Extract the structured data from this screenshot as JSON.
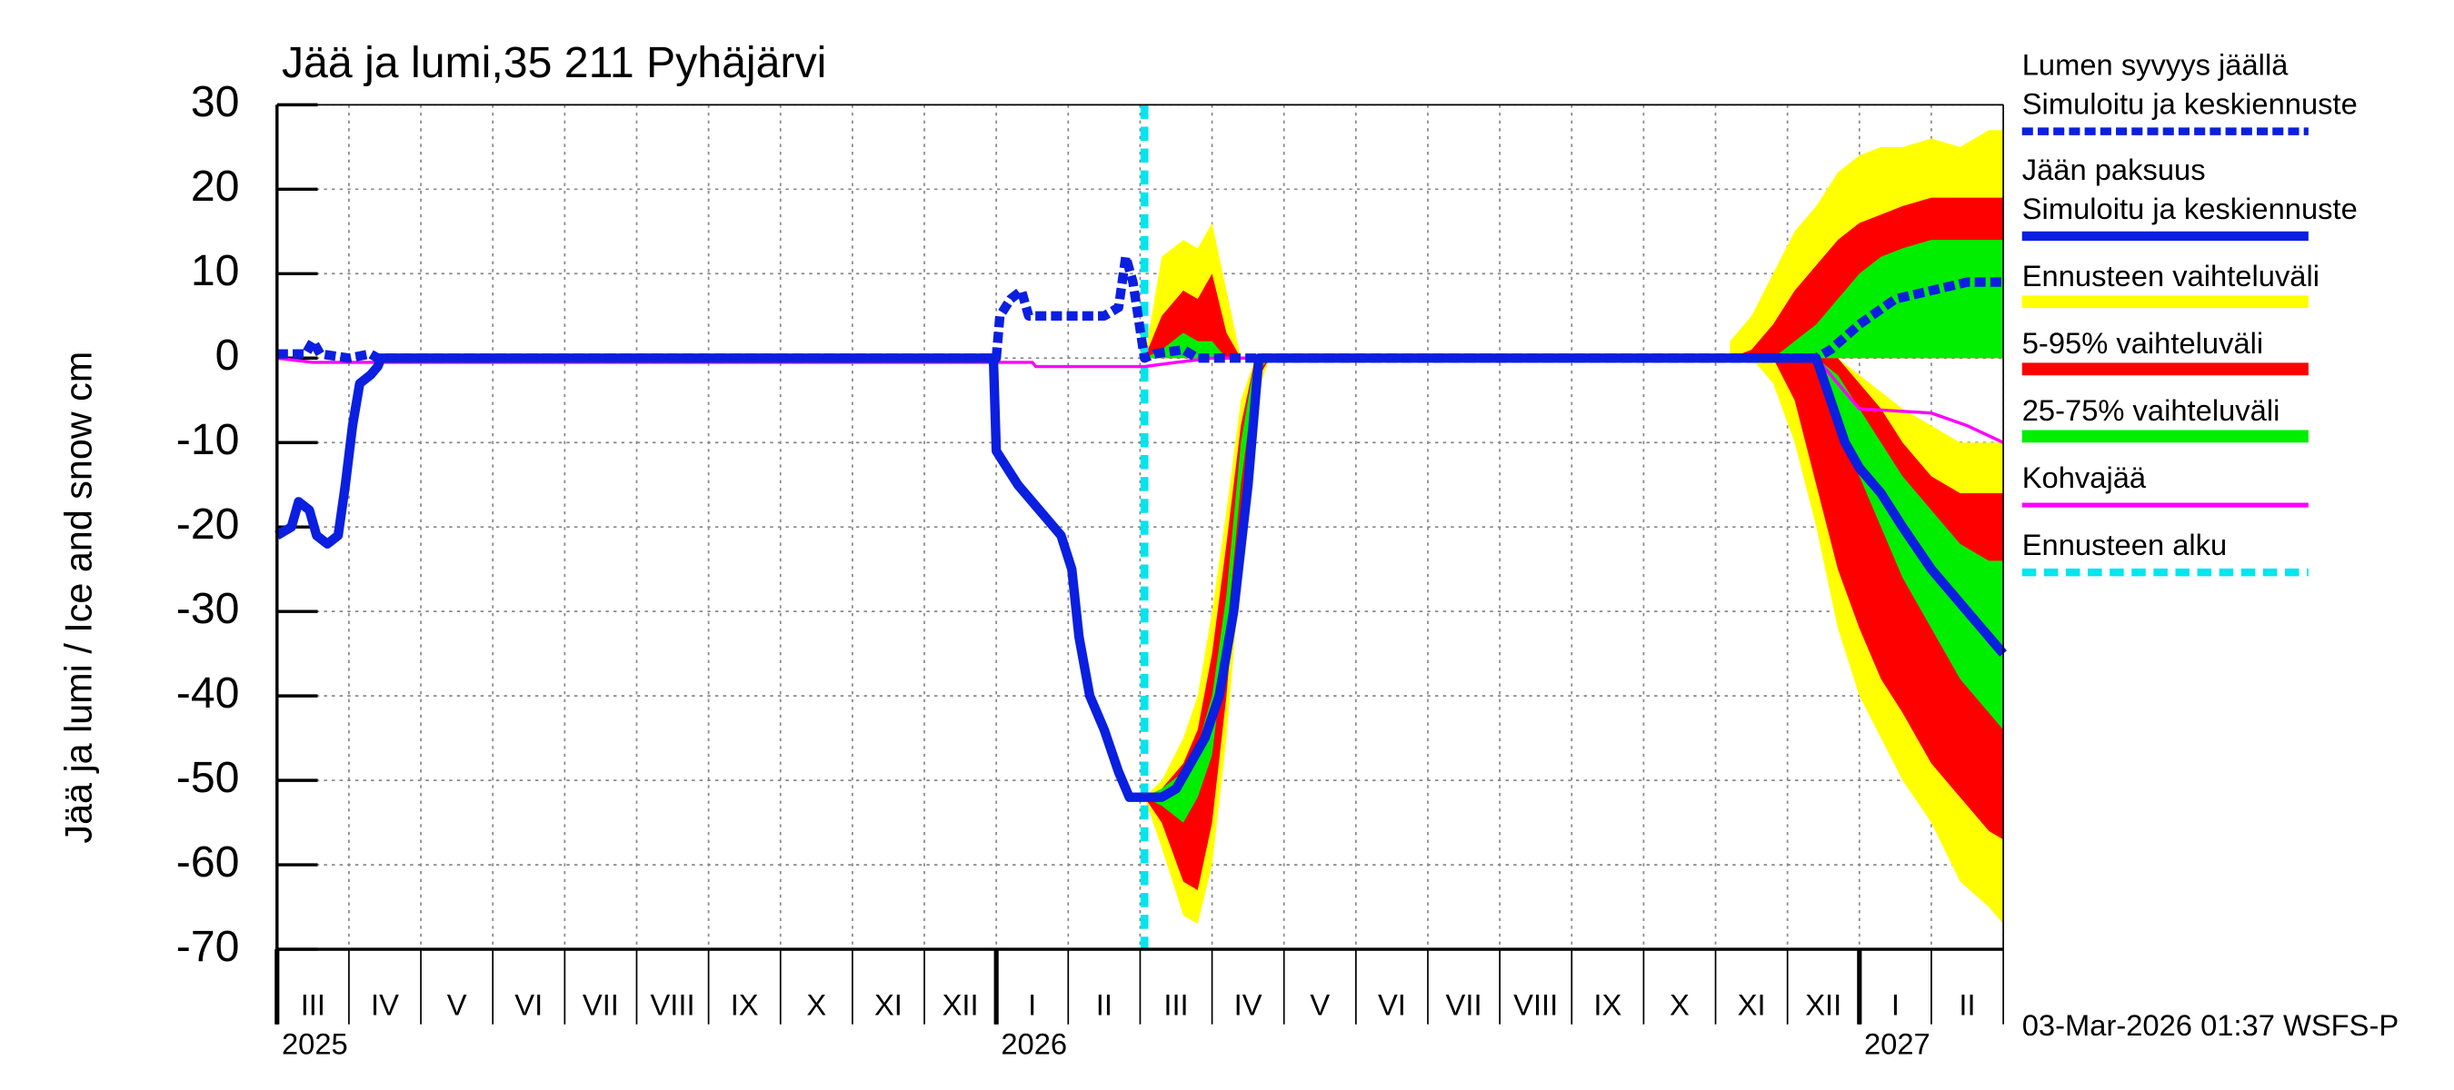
{
  "chart_data": {
    "type": "line",
    "title": "Jää ja lumi,35 211 Pyhäjärvi",
    "y_label": "Jää ja lumi / Ice and snow    cm",
    "footer": "03-Mar-2026 01:37 WSFS-P",
    "ylim": [
      -70,
      30
    ],
    "yticks": [
      -70,
      -60,
      -50,
      -40,
      -30,
      -20,
      -10,
      0,
      10,
      20,
      30
    ],
    "xlim": [
      0,
      24
    ],
    "xticks": [
      0,
      1,
      2,
      3,
      4,
      5,
      6,
      7,
      8,
      9,
      10,
      11,
      12,
      13,
      14,
      15,
      16,
      17,
      18,
      19,
      20,
      21,
      22,
      23,
      24
    ],
    "categories": [
      "III",
      "IV",
      "V",
      "VI",
      "VII",
      "VIII",
      "IX",
      "X",
      "XI",
      "XII",
      "I",
      "II",
      "III",
      "IV",
      "V",
      "VI",
      "VII",
      "VIII",
      "IX",
      "X",
      "XI",
      "XII",
      "I",
      "II"
    ],
    "year_ticks": [
      {
        "value": 0,
        "label": "2025"
      },
      {
        "value": 10,
        "label": "2026"
      },
      {
        "value": 22,
        "label": "2027"
      }
    ],
    "grid": true,
    "band_x": [
      12.06,
      12.3,
      12.6,
      12.8,
      13.0,
      13.2,
      13.4,
      13.6,
      13.8,
      14.0,
      null,
      20.2,
      20.5,
      20.8,
      21.1,
      21.4,
      21.7,
      22.0,
      22.3,
      22.6,
      23.0,
      23.4,
      23.8,
      24.0
    ],
    "bands": [
      {
        "name": "Ennusteen vaihteluväli",
        "color": "#ffff00",
        "ice_lower": [
          -52,
          -58,
          -66,
          -67,
          -60,
          -45,
          -25,
          -5,
          0,
          0,
          null,
          0,
          0,
          -3,
          -10,
          -20,
          -32,
          -40,
          -45,
          -50,
          -55,
          -62,
          -65,
          -67
        ],
        "ice_upper": [
          -52,
          -50,
          -45,
          -40,
          -30,
          -18,
          -5,
          0,
          0,
          0,
          null,
          0,
          0,
          0,
          0,
          0,
          0,
          -2,
          -4,
          -6,
          -8,
          -10,
          -10,
          -10
        ],
        "snow_upper": [
          0,
          12,
          14,
          13,
          16,
          8,
          0,
          0,
          0,
          0,
          null,
          2,
          5,
          10,
          15,
          18,
          22,
          24,
          25,
          25,
          26,
          25,
          27,
          27
        ]
      },
      {
        "name": "5-95% vaihteluväli",
        "color": "#ff0000",
        "ice_lower": [
          -52,
          -55,
          -62,
          -63,
          -55,
          -40,
          -20,
          -3,
          0,
          0,
          null,
          0,
          0,
          0,
          -5,
          -15,
          -25,
          -32,
          -38,
          -42,
          -48,
          -52,
          -56,
          -57
        ],
        "ice_upper": [
          -52,
          -51,
          -48,
          -44,
          -35,
          -22,
          -8,
          0,
          0,
          0,
          null,
          0,
          0,
          0,
          0,
          0,
          0,
          -3,
          -6,
          -10,
          -14,
          -16,
          -16,
          -16
        ],
        "snow_upper": [
          0,
          5,
          8,
          7,
          10,
          3,
          0,
          0,
          0,
          0,
          null,
          0,
          1,
          4,
          8,
          11,
          14,
          16,
          17,
          18,
          19,
          19,
          19,
          19
        ]
      },
      {
        "name": "25-75% vaihteluväli",
        "color": "#00ee00",
        "ice_lower": [
          -52,
          -53,
          -55,
          -52,
          -47,
          -33,
          -15,
          -2,
          0,
          0,
          null,
          0,
          0,
          0,
          0,
          0,
          -8,
          -14,
          -20,
          -26,
          -32,
          -38,
          -42,
          -44
        ],
        "ice_upper": [
          -52,
          -51,
          -49,
          -46,
          -40,
          -28,
          -10,
          0,
          0,
          0,
          null,
          0,
          0,
          0,
          0,
          0,
          -2,
          -6,
          -10,
          -14,
          -18,
          -22,
          -24,
          -24
        ],
        "snow_upper": [
          0,
          1,
          3,
          2,
          2,
          0,
          0,
          0,
          0,
          0,
          null,
          0,
          0,
          0,
          2,
          4,
          7,
          10,
          12,
          13,
          14,
          14,
          14,
          14
        ]
      }
    ],
    "series": [
      {
        "name": "Lumen syvyys jäällä",
        "description": "Simuloitu ja keskiennuste",
        "color": "#0a1fe0",
        "dashed": true,
        "x": [
          0,
          0.4,
          0.5,
          0.6,
          1.0,
          1.3,
          1.4,
          10.0,
          10.05,
          10.2,
          10.35,
          10.45,
          11.5,
          11.7,
          11.8,
          11.9,
          12.06,
          12.2,
          12.6,
          12.8,
          21.4,
          21.6,
          22.0,
          22.5,
          23.0,
          23.5,
          24.0
        ],
        "values": [
          0.5,
          0.5,
          2,
          0.5,
          0,
          0.5,
          0,
          0,
          5,
          7,
          8,
          5,
          5,
          6,
          12,
          9,
          0,
          0.5,
          1,
          0,
          0,
          1,
          4,
          7,
          8,
          9,
          9
        ]
      },
      {
        "name": "Jään paksuus",
        "description": "Simuloitu ja keskiennuste",
        "color": "#0a1fe0",
        "dashed": false,
        "x": [
          0,
          0.2,
          0.3,
          0.45,
          0.55,
          0.7,
          0.85,
          0.95,
          1.05,
          1.15,
          1.3,
          1.4,
          1.45,
          9.96,
          10.0,
          10.3,
          10.6,
          10.9,
          11.05,
          11.15,
          11.3,
          11.5,
          11.7,
          11.85,
          12.06,
          12.3,
          12.5,
          12.7,
          12.9,
          13.1,
          13.3,
          13.5,
          13.65,
          21.4,
          21.6,
          21.8,
          22.0,
          22.3,
          22.6,
          23.0,
          23.5,
          24.0
        ],
        "values": [
          -21,
          -20,
          -17,
          -18,
          -21,
          -22,
          -21,
          -15,
          -8,
          -3,
          -2,
          -1,
          0,
          0,
          -11,
          -15,
          -18,
          -21,
          -25,
          -33,
          -40,
          -44,
          -49,
          -52,
          -52,
          -52,
          -51,
          -48,
          -45,
          -40,
          -30,
          -15,
          0,
          0,
          -5,
          -10,
          -13,
          -16,
          -20,
          -25,
          -30,
          -35
        ]
      },
      {
        "name": "Kohvajää",
        "color": "#ff00ff",
        "dashed": false,
        "x": [
          0,
          0.5,
          10.5,
          10.55,
          12.06,
          12.5,
          13.0,
          21.4,
          21.7,
          22.0,
          23.0,
          23.5,
          24.0
        ],
        "values": [
          0,
          -0.5,
          -0.5,
          -1,
          -1,
          -0.5,
          0,
          0,
          -3,
          -6,
          -6.5,
          -8,
          -10
        ]
      }
    ],
    "forecast_start": {
      "name": "Ennusteen alku",
      "x": 12.06,
      "color": "#00e5ee"
    }
  }
}
